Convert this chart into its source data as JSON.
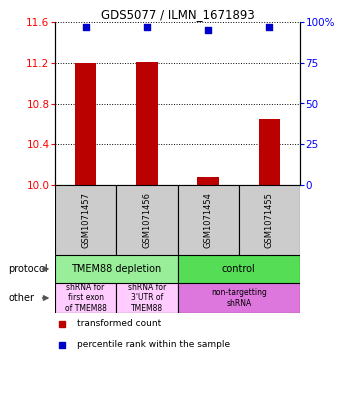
{
  "title": "GDS5077 / ILMN_1671893",
  "samples": [
    "GSM1071457",
    "GSM1071456",
    "GSM1071454",
    "GSM1071455"
  ],
  "bar_values": [
    11.2,
    11.21,
    10.08,
    10.65
  ],
  "bar_bottom": 10.0,
  "blue_values": [
    97,
    97,
    95,
    97
  ],
  "ylim_left": [
    10.0,
    11.6
  ],
  "ylim_right": [
    0,
    100
  ],
  "yticks_left": [
    10.0,
    10.4,
    10.8,
    11.2,
    11.6
  ],
  "yticks_right": [
    0,
    25,
    50,
    75,
    100
  ],
  "ytick_labels_right": [
    "0",
    "25",
    "50",
    "75",
    "100%"
  ],
  "bar_color": "#bb0000",
  "dot_color": "#0000cc",
  "grid_color": "#000000",
  "sample_box_color": "#cccccc",
  "protocol_row": [
    {
      "label": "TMEM88 depletion",
      "cols": [
        0,
        1
      ],
      "color": "#99ee99"
    },
    {
      "label": "control",
      "cols": [
        2,
        3
      ],
      "color": "#55dd55"
    }
  ],
  "other_row": [
    {
      "label": "shRNA for\nfirst exon\nof TMEM88",
      "cols": [
        0
      ],
      "color": "#ffccff"
    },
    {
      "label": "shRNA for\n3'UTR of\nTMEM88",
      "cols": [
        1
      ],
      "color": "#ffccff"
    },
    {
      "label": "non-targetting\nshRNA",
      "cols": [
        2,
        3
      ],
      "color": "#dd77dd"
    }
  ],
  "legend_red": "transformed count",
  "legend_blue": "percentile rank within the sample",
  "left_label_protocol": "protocol",
  "left_label_other": "other",
  "fig_width": 3.4,
  "fig_height": 3.93,
  "dpi": 100
}
